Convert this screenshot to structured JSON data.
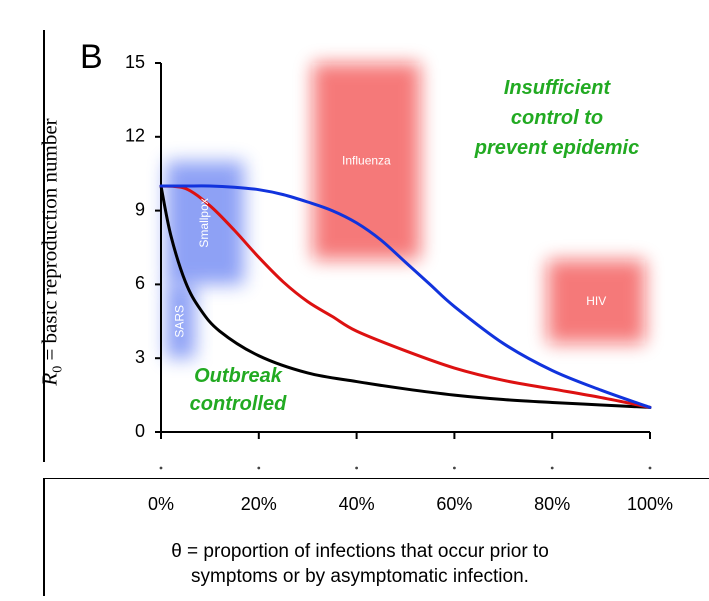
{
  "chart_data": {
    "type": "line",
    "panel_label": "B",
    "ylabel_symbol": "R",
    "ylabel_subscript": "0",
    "ylabel_text": " = basic reproduction number",
    "xlabel_line1": "θ = proportion of infections that occur prior to",
    "xlabel_line2": "symptoms or by asymptomatic infection.",
    "xlim": [
      0,
      1
    ],
    "ylim": [
      0,
      15
    ],
    "yticks": [
      0,
      3,
      6,
      9,
      12,
      15
    ],
    "xticks": [
      0,
      0.2,
      0.4,
      0.6,
      0.8,
      1.0
    ],
    "xtick_labels": [
      "0%",
      "20%",
      "40%",
      "60%",
      "80%",
      "100%"
    ],
    "grid": false,
    "series": [
      {
        "color": "#000000",
        "x": [
          0,
          0.02,
          0.05,
          0.08,
          0.12,
          0.2,
          0.3,
          0.4,
          0.5,
          0.6,
          0.7,
          0.8,
          0.9,
          1.0
        ],
        "y": [
          10,
          8.0,
          6.1,
          5.0,
          4.1,
          3.1,
          2.4,
          2.05,
          1.75,
          1.5,
          1.32,
          1.2,
          1.1,
          1.0
        ]
      },
      {
        "color": "#dd1111",
        "x": [
          0,
          0.05,
          0.1,
          0.15,
          0.2,
          0.25,
          0.3,
          0.35,
          0.4,
          0.5,
          0.6,
          0.7,
          0.8,
          0.9,
          1.0
        ],
        "y": [
          10,
          9.9,
          9.2,
          8.2,
          7.1,
          6.1,
          5.3,
          4.7,
          4.1,
          3.3,
          2.6,
          2.1,
          1.75,
          1.4,
          1.0
        ]
      },
      {
        "color": "#1133dd",
        "x": [
          0,
          0.05,
          0.1,
          0.15,
          0.2,
          0.25,
          0.3,
          0.35,
          0.4,
          0.45,
          0.5,
          0.55,
          0.6,
          0.7,
          0.8,
          0.9,
          1.0
        ],
        "y": [
          10,
          10,
          10,
          9.95,
          9.85,
          9.65,
          9.35,
          9.0,
          8.5,
          7.8,
          6.9,
          6.0,
          5.1,
          3.6,
          2.5,
          1.7,
          1.0
        ]
      }
    ],
    "regions": [
      {
        "label": "SARS",
        "color": "#3355ee",
        "x": [
          0.01,
          0.07
        ],
        "y": [
          3.0,
          6.0
        ],
        "label_rotated": true
      },
      {
        "label": "Smallpox",
        "color": "#3355ee",
        "x": [
          0.01,
          0.17
        ],
        "y": [
          6.0,
          11.0
        ],
        "label_rotated": true
      },
      {
        "label": "Influenza",
        "color": "#ee1111",
        "x": [
          0.31,
          0.53
        ],
        "y": [
          7.0,
          15.0
        ],
        "label_rotated": false
      },
      {
        "label": "HIV",
        "color": "#ee1111",
        "x": [
          0.79,
          0.99
        ],
        "y": [
          3.6,
          7.0
        ],
        "label_rotated": false
      }
    ],
    "annotations": [
      {
        "lines": [
          "Insufficient",
          "control to",
          "prevent epidemic"
        ],
        "color": "#22aa22"
      },
      {
        "lines": [
          "Outbreak",
          "controlled"
        ],
        "color": "#22aa22"
      }
    ]
  }
}
